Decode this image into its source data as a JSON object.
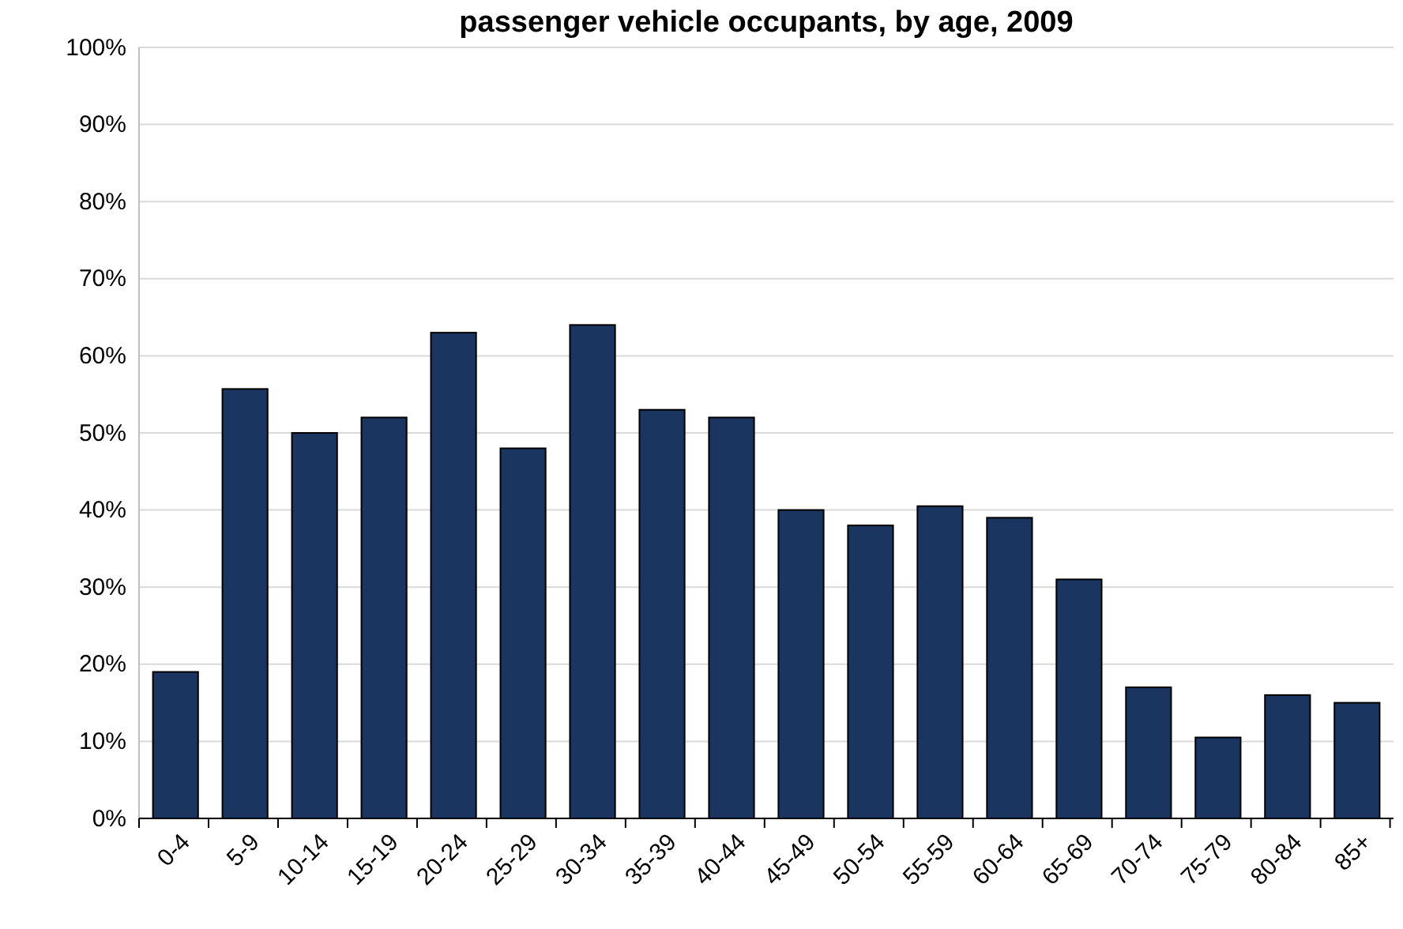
{
  "chart_data": {
    "type": "bar",
    "title": "passenger vehicle occupants, by age, 2009",
    "categories": [
      "0-4",
      "5-9",
      "10-14",
      "15-19",
      "20-24",
      "25-29",
      "30-34",
      "35-39",
      "40-44",
      "45-49",
      "50-54",
      "55-59",
      "60-64",
      "65-69",
      "70-74",
      "75-79",
      "80-84",
      "85+"
    ],
    "values": [
      19,
      55.7,
      50,
      52,
      63,
      48,
      64,
      53,
      52,
      40,
      38,
      40.5,
      39,
      31,
      17,
      10.5,
      16,
      15
    ],
    "color": "#1a3560",
    "ylim": [
      0,
      100
    ],
    "yticks": [
      {
        "value": 0,
        "label": "0%"
      },
      {
        "value": 10,
        "label": "10%"
      },
      {
        "value": 20,
        "label": "20%"
      },
      {
        "value": 30,
        "label": "30%"
      },
      {
        "value": 40,
        "label": "40%"
      },
      {
        "value": 50,
        "label": "50%"
      },
      {
        "value": 60,
        "label": "60%"
      },
      {
        "value": 70,
        "label": "70%"
      },
      {
        "value": 80,
        "label": "80%"
      },
      {
        "value": 90,
        "label": "90%"
      },
      {
        "value": 100,
        "label": "100%"
      }
    ],
    "grid": "y"
  }
}
